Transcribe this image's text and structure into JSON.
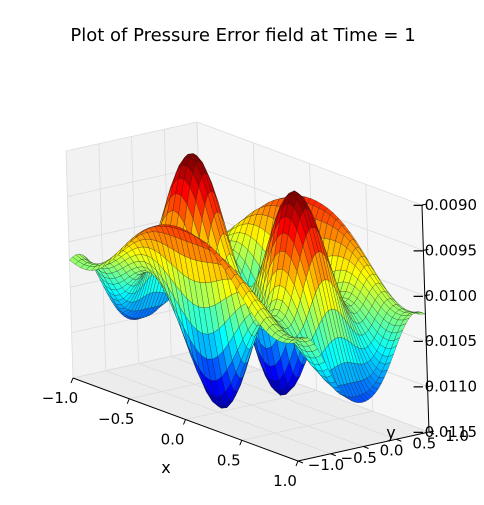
{
  "chart_data": {
    "type": "surface3d",
    "title": "Plot of Pressure Error field at Time = 1",
    "xlabel": "x",
    "ylabel": "y",
    "zlabel": "",
    "xlim": [
      -1.0,
      1.0
    ],
    "ylim": [
      -1.0,
      1.0
    ],
    "zlim": [
      -0.0115,
      -0.009
    ],
    "xticks": [
      "−1.0",
      "−0.5",
      "0.0",
      "0.5",
      "1.0"
    ],
    "yticks": [
      "−1.0",
      "−0.5",
      "0.0",
      "0.5",
      "1.0"
    ],
    "zticks": [
      "−0.0115",
      "−0.0110",
      "−0.0105",
      "−0.0100",
      "−0.0095",
      "−0.0090"
    ],
    "colormap": "jet",
    "grid": true
  }
}
